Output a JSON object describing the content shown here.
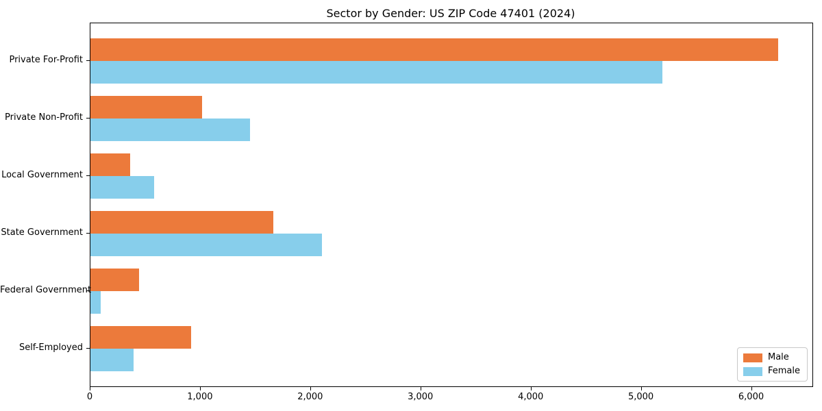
{
  "chart_data": {
    "type": "bar",
    "orientation": "horizontal",
    "title": "Sector by Gender: US ZIP Code 47401 (2024)",
    "categories": [
      "Private For-Profit",
      "Private Non-Profit",
      "Local Government",
      "State Government",
      "Federal Government",
      "Self-Employed"
    ],
    "series": [
      {
        "name": "Male",
        "color": "#ec7a3b",
        "values": [
          6240,
          1010,
          360,
          1660,
          440,
          915
        ]
      },
      {
        "name": "Female",
        "color": "#87ceeb",
        "values": [
          5190,
          1450,
          580,
          2100,
          95,
          390
        ]
      }
    ],
    "xlim": [
      0,
      6550
    ],
    "xticks": [
      0,
      1000,
      2000,
      3000,
      4000,
      5000,
      6000
    ],
    "xtick_labels": [
      "0",
      "1,000",
      "2,000",
      "3,000",
      "4,000",
      "5,000",
      "6,000"
    ],
    "xlabel": "",
    "ylabel": "",
    "grid": false,
    "legend": {
      "position": "lower right",
      "entries": [
        "Male",
        "Female"
      ]
    },
    "frame_color": "#000000",
    "background_color": "#ffffff"
  }
}
